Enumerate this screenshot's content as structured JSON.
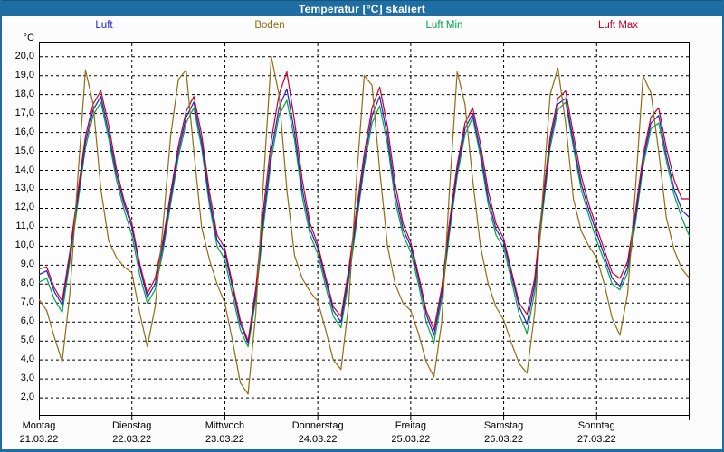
{
  "window": {
    "title": "Temperatur [°C] skaliert",
    "titlebar_color": "#1f6ea3",
    "frame_color": "#1f6ea3",
    "background_color": "#fcfcfc"
  },
  "legend": [
    {
      "label": "Luft",
      "color": "#2121cc"
    },
    {
      "label": "Boden",
      "color": "#8f6d17"
    },
    {
      "label": "Luft Min",
      "color": "#00a344"
    },
    {
      "label": "Luft Max",
      "color": "#c4002e"
    }
  ],
  "chart_data": {
    "type": "line",
    "title": "Temperatur [°C] skaliert",
    "xlabel": "",
    "ylabel": "°C",
    "ylim": [
      1.05,
      20.75
    ],
    "yticks": [
      2,
      3,
      4,
      5,
      6,
      7,
      8,
      9,
      10,
      11,
      12,
      13,
      14,
      15,
      16,
      17,
      18,
      19,
      20
    ],
    "ytick_decimal_separator": ",",
    "grid": true,
    "grid_color": "#000000",
    "legend_position": "top",
    "x_total_hours": 168,
    "x_step_hours": 2,
    "days": [
      {
        "name": "Montag",
        "date": "21.03.22"
      },
      {
        "name": "Dienstag",
        "date": "22.03.22"
      },
      {
        "name": "Mittwoch",
        "date": "23.03.22"
      },
      {
        "name": "Donnerstag",
        "date": "24.03.22"
      },
      {
        "name": "Freitag",
        "date": "25.03.22"
      },
      {
        "name": "Samstag",
        "date": "26.03.22"
      },
      {
        "name": "Sonntag",
        "date": "27.03.22"
      }
    ],
    "series": [
      {
        "name": "Luft",
        "color": "#2121cc",
        "values": [
          8.5,
          8.7,
          7.6,
          6.9,
          9.5,
          12.5,
          15.5,
          17.2,
          17.9,
          16.0,
          13.8,
          12.2,
          11.0,
          8.9,
          7.3,
          8.0,
          10.0,
          12.5,
          15.0,
          16.8,
          17.6,
          15.5,
          12.5,
          10.3,
          9.7,
          7.8,
          5.9,
          4.9,
          7.5,
          11.5,
          15.0,
          17.3,
          18.3,
          16.0,
          13.0,
          10.9,
          9.9,
          8.2,
          6.6,
          6.0,
          8.5,
          11.5,
          14.5,
          16.9,
          17.9,
          15.8,
          12.8,
          10.9,
          10.0,
          8.3,
          6.4,
          5.3,
          7.5,
          11.0,
          14.0,
          16.2,
          17.0,
          15.0,
          12.5,
          10.9,
          10.2,
          8.5,
          6.8,
          5.9,
          8.0,
          12.0,
          15.5,
          17.5,
          17.8,
          15.5,
          13.3,
          11.9,
          10.7,
          9.5,
          8.3,
          7.9,
          8.9,
          11.5,
          14.5,
          16.5,
          16.9,
          14.8,
          13.0,
          11.9,
          11.5
        ]
      },
      {
        "name": "Boden",
        "color": "#8f6d17",
        "values": [
          7.2,
          6.6,
          5.2,
          3.9,
          7.5,
          13.5,
          19.3,
          17.5,
          13.0,
          10.3,
          9.4,
          8.9,
          8.6,
          6.5,
          4.7,
          6.8,
          11.0,
          15.8,
          18.8,
          19.3,
          15.0,
          11.0,
          9.3,
          8.0,
          7.0,
          5.0,
          2.8,
          2.2,
          6.5,
          13.5,
          20.0,
          18.0,
          13.0,
          9.5,
          8.3,
          7.6,
          7.1,
          5.6,
          4.0,
          3.5,
          7.0,
          13.5,
          19.0,
          18.5,
          14.0,
          10.0,
          8.0,
          7.0,
          6.6,
          5.4,
          3.9,
          3.1,
          6.0,
          13.0,
          19.2,
          17.5,
          13.5,
          10.0,
          8.0,
          6.8,
          6.1,
          4.9,
          3.8,
          3.3,
          6.5,
          12.5,
          18.0,
          19.4,
          16.5,
          12.5,
          10.8,
          10.0,
          9.4,
          8.0,
          6.2,
          5.3,
          7.5,
          13.0,
          19.0,
          18.1,
          15.0,
          11.5,
          9.8,
          8.8,
          8.3
        ]
      },
      {
        "name": "Luft Min",
        "color": "#00a344",
        "values": [
          8.1,
          8.3,
          7.2,
          6.5,
          9.2,
          12.2,
          15.2,
          16.9,
          17.6,
          15.7,
          13.5,
          11.9,
          10.6,
          8.5,
          7.0,
          7.7,
          9.7,
          12.2,
          14.7,
          16.5,
          17.3,
          15.2,
          12.2,
          10.0,
          9.3,
          7.4,
          5.6,
          4.7,
          7.2,
          11.1,
          14.6,
          16.9,
          17.7,
          15.6,
          12.6,
          10.6,
          9.6,
          7.9,
          6.3,
          5.7,
          8.2,
          11.2,
          14.2,
          16.5,
          17.4,
          15.4,
          12.4,
          10.6,
          9.7,
          8.0,
          6.0,
          4.9,
          7.2,
          10.7,
          13.7,
          15.9,
          16.8,
          14.7,
          12.2,
          10.6,
          9.9,
          8.2,
          6.4,
          5.4,
          7.6,
          11.7,
          15.2,
          17.2,
          17.6,
          15.2,
          13.0,
          11.6,
          10.3,
          9.2,
          8.0,
          7.7,
          8.6,
          11.2,
          14.2,
          16.2,
          16.5,
          14.5,
          12.7,
          11.5,
          10.5
        ]
      },
      {
        "name": "Luft Max",
        "color": "#c4002e",
        "values": [
          8.8,
          8.9,
          7.8,
          7.1,
          9.7,
          12.8,
          15.8,
          17.5,
          18.2,
          16.4,
          14.1,
          12.4,
          11.2,
          9.1,
          7.5,
          8.3,
          10.3,
          12.8,
          15.3,
          17.1,
          17.9,
          15.9,
          12.9,
          10.6,
          9.9,
          8.0,
          6.1,
          5.0,
          7.8,
          12.0,
          15.6,
          18.0,
          19.2,
          16.6,
          13.5,
          11.2,
          10.1,
          8.4,
          6.8,
          6.3,
          8.8,
          11.9,
          14.9,
          17.3,
          18.4,
          16.3,
          13.3,
          11.2,
          10.2,
          8.5,
          6.6,
          5.6,
          7.8,
          11.3,
          14.3,
          16.5,
          17.3,
          15.4,
          12.9,
          11.2,
          10.4,
          8.7,
          7.0,
          6.4,
          8.3,
          12.3,
          15.8,
          17.8,
          18.2,
          15.9,
          13.7,
          12.2,
          11.0,
          9.8,
          8.6,
          8.3,
          9.2,
          11.8,
          14.8,
          16.8,
          17.3,
          15.2,
          13.5,
          12.5,
          12.5
        ]
      }
    ]
  }
}
